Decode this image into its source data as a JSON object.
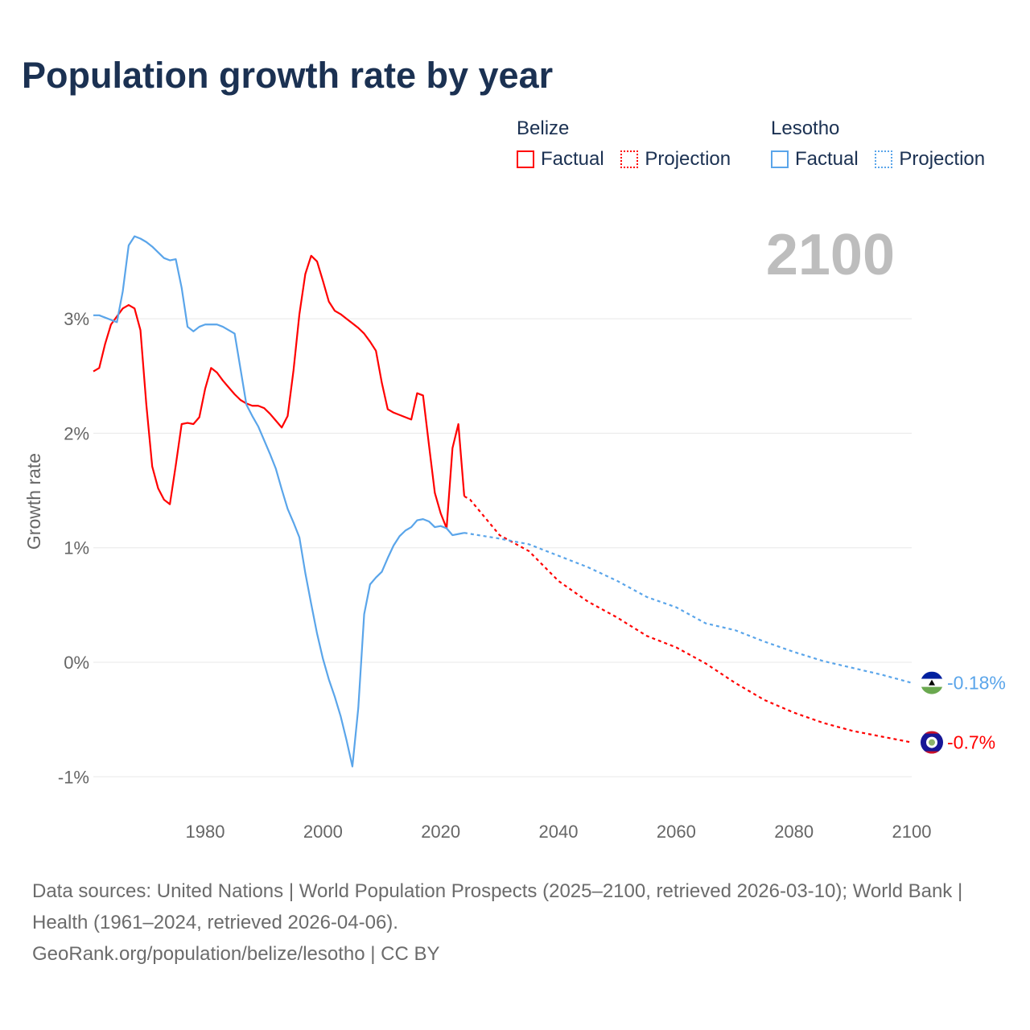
{
  "title": "Population growth rate by year",
  "legend": {
    "groups": [
      {
        "name": "Belize",
        "color": "#ff0000",
        "items": [
          "Factual",
          "Projection"
        ]
      },
      {
        "name": "Lesotho",
        "color": "#5aa5ea",
        "items": [
          "Factual",
          "Projection"
        ]
      }
    ]
  },
  "current_year_label": "2100",
  "chart_data": {
    "type": "line",
    "title": "Population growth rate by year",
    "xlabel": "",
    "ylabel": "Growth rate",
    "xlim": [
      1961,
      2100
    ],
    "ylim": [
      -1.2,
      3.9
    ],
    "x_ticks": [
      1980,
      2000,
      2020,
      2040,
      2060,
      2080,
      2100
    ],
    "x_tick_labels": [
      "1980",
      "2000",
      "2020",
      "2040",
      "2060",
      "2080",
      "2100"
    ],
    "y_ticks": [
      -1,
      0,
      1,
      2,
      3
    ],
    "y_tick_labels": [
      "-1%",
      "0%",
      "1%",
      "2%",
      "3%"
    ],
    "grid": true,
    "series": [
      {
        "name": "Belize",
        "color": "#ff0000",
        "factual": {
          "start_year": 1961,
          "values": [
            2.54,
            2.57,
            2.78,
            2.95,
            3.02,
            3.09,
            3.12,
            3.09,
            2.9,
            2.25,
            1.71,
            1.52,
            1.42,
            1.38,
            1.72,
            2.08,
            2.09,
            2.08,
            2.14,
            2.39,
            2.57,
            2.53,
            2.46,
            2.4,
            2.34,
            2.29,
            2.26,
            2.24,
            2.24,
            2.22,
            2.17,
            2.11,
            2.05,
            2.15,
            2.55,
            3.04,
            3.39,
            3.55,
            3.5,
            3.33,
            3.15,
            3.07,
            3.04,
            3.0,
            2.96,
            2.92,
            2.87,
            2.8,
            2.72,
            2.44,
            2.21,
            2.18,
            2.16,
            2.14,
            2.12,
            2.35,
            2.33,
            1.9,
            1.48,
            1.3,
            1.17,
            1.87,
            2.08,
            1.45
          ]
        },
        "projection": {
          "x": [
            2024,
            2025,
            2030,
            2035,
            2040,
            2045,
            2050,
            2055,
            2060,
            2065,
            2070,
            2075,
            2080,
            2085,
            2090,
            2095,
            2100
          ],
          "values": [
            1.45,
            1.42,
            1.11,
            0.97,
            0.71,
            0.53,
            0.39,
            0.23,
            0.13,
            -0.01,
            -0.18,
            -0.33,
            -0.44,
            -0.53,
            -0.6,
            -0.65,
            -0.7
          ]
        },
        "end_label": "-0.7%"
      },
      {
        "name": "Lesotho",
        "color": "#5aa5ea",
        "factual": {
          "start_year": 1961,
          "values": [
            3.03,
            3.03,
            3.01,
            2.99,
            2.97,
            3.24,
            3.64,
            3.72,
            3.7,
            3.67,
            3.63,
            3.58,
            3.53,
            3.51,
            3.52,
            3.27,
            2.93,
            2.89,
            2.93,
            2.95,
            2.95,
            2.95,
            2.93,
            2.9,
            2.87,
            2.56,
            2.25,
            2.15,
            2.06,
            1.94,
            1.82,
            1.69,
            1.51,
            1.34,
            1.22,
            1.09,
            0.78,
            0.51,
            0.25,
            0.03,
            -0.15,
            -0.3,
            -0.47,
            -0.68,
            -0.91,
            -0.4,
            0.42,
            0.68,
            0.74,
            0.79,
            0.91,
            1.02,
            1.1,
            1.15,
            1.18,
            1.24,
            1.25,
            1.23,
            1.18,
            1.19,
            1.17,
            1.11,
            1.12,
            1.13
          ]
        },
        "projection": {
          "x": [
            2024,
            2030,
            2035,
            2040,
            2045,
            2050,
            2055,
            2060,
            2065,
            2070,
            2075,
            2080,
            2085,
            2090,
            2095,
            2100
          ],
          "values": [
            1.13,
            1.08,
            1.03,
            0.93,
            0.83,
            0.71,
            0.57,
            0.48,
            0.34,
            0.28,
            0.18,
            0.09,
            0.01,
            -0.05,
            -0.11,
            -0.18
          ]
        },
        "end_label": "-0.18%"
      }
    ]
  },
  "footer": {
    "sources": "Data sources: United Nations | World Population Prospects (2025–2100, retrieved 2026-03-10); World Bank | Health (1961–2024, retrieved 2026-04-06).",
    "credit": "GeoRank.org/population/belize/lesotho | CC BY"
  }
}
